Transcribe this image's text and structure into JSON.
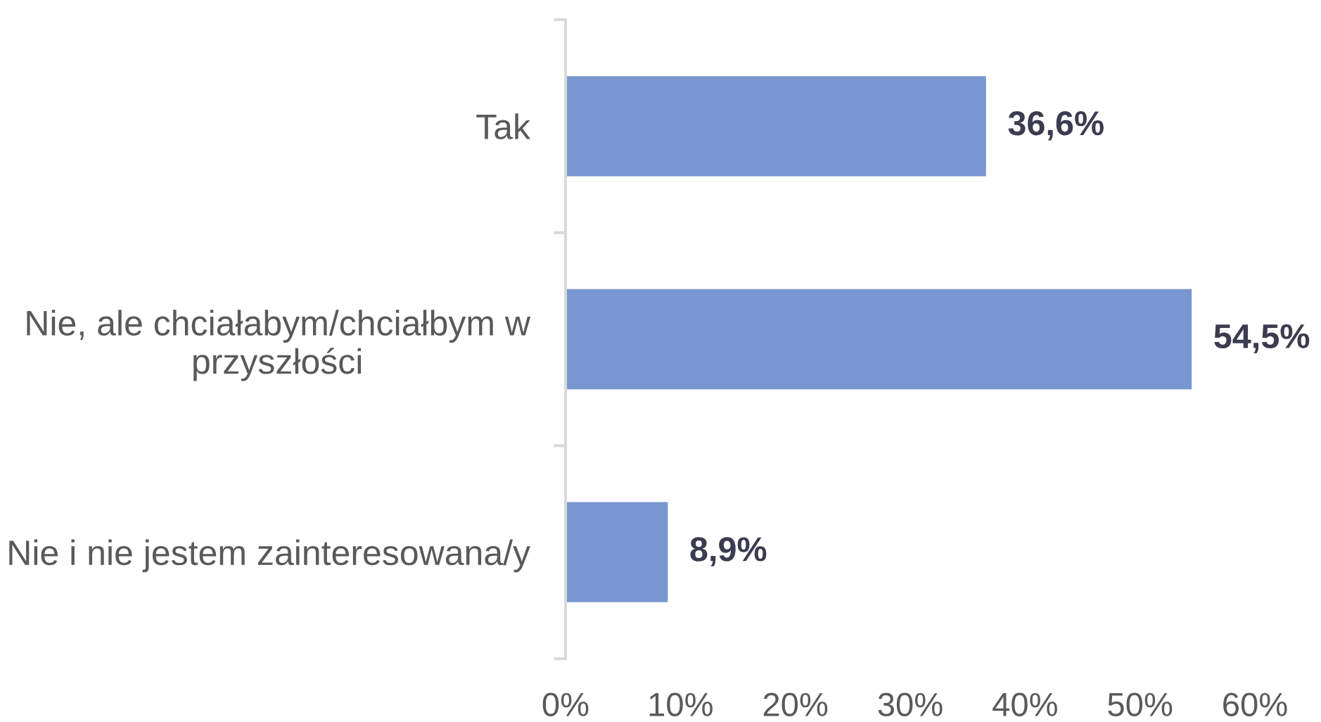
{
  "chart_data": {
    "type": "bar",
    "orientation": "horizontal",
    "categories": [
      "Tak",
      "Nie, ale chciałabym/chciałbym w przyszłości",
      "Nie i nie jestem zainteresowana/y"
    ],
    "values": [
      36.6,
      54.5,
      8.9
    ],
    "value_labels": [
      "36,6%",
      "54,5%",
      "8,9%"
    ],
    "color": "#7897d0",
    "xlim": [
      0,
      60
    ],
    "xticks": [
      {
        "value": 0,
        "label": "0%"
      },
      {
        "value": 10,
        "label": "10%"
      },
      {
        "value": 20,
        "label": "20%"
      },
      {
        "value": 30,
        "label": "30%"
      },
      {
        "value": 40,
        "label": "40%"
      },
      {
        "value": 50,
        "label": "50%"
      },
      {
        "value": 60,
        "label": "60%"
      }
    ]
  }
}
